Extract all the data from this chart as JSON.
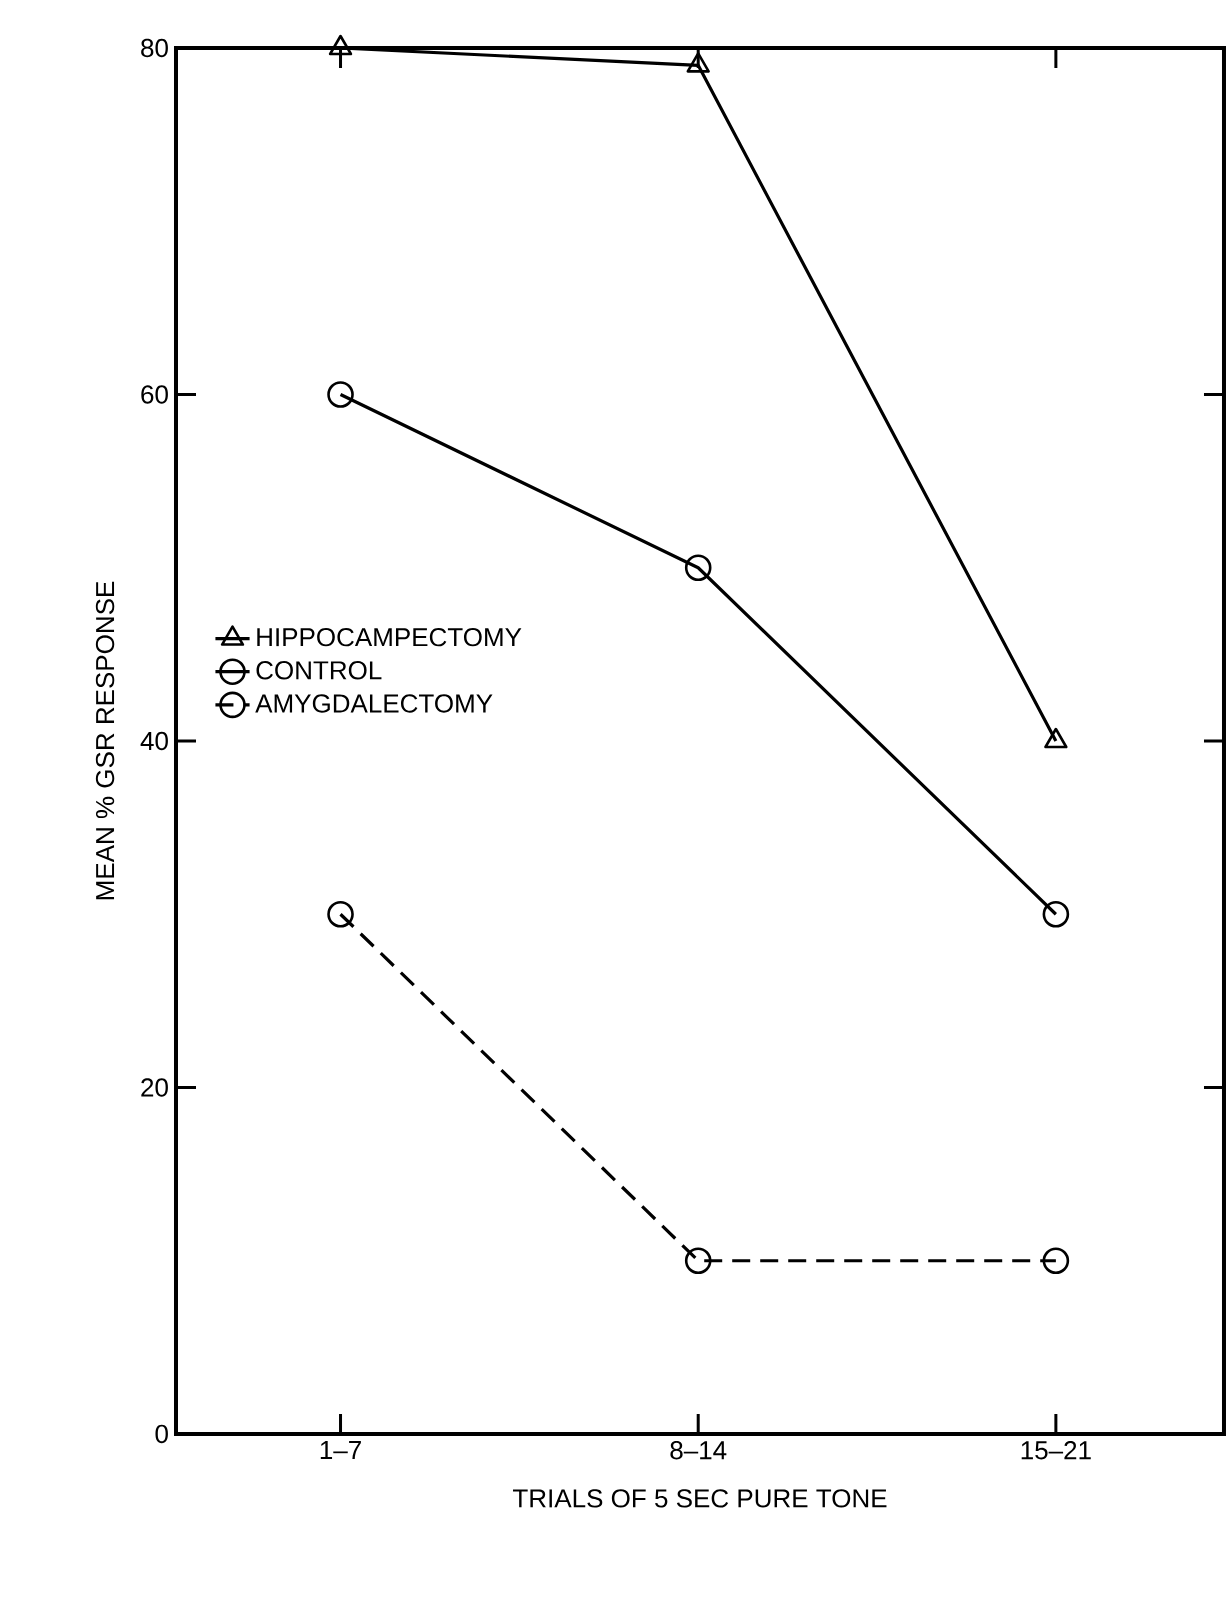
{
  "chart_data": {
    "type": "line",
    "xlabel": "TRIALS OF 5 SEC PURE TONE",
    "ylabel": "MEAN % GSR RESPONSE",
    "categories": [
      "1–7",
      "8–14",
      "15–21"
    ],
    "series": [
      {
        "name": "HIPPOCAMPECTOMY",
        "color": "#000000",
        "marker": "triangle",
        "line_style": "solid",
        "values": [
          80,
          79,
          40
        ]
      },
      {
        "name": "CONTROL",
        "color": "#000000",
        "marker": "circle",
        "line_style": "solid",
        "values": [
          60,
          50,
          30
        ]
      },
      {
        "name": "AMYGDALECTOMY",
        "color": "#000000",
        "marker": "circle",
        "line_style": "dashed",
        "values": [
          30,
          10,
          10
        ]
      }
    ],
    "ylim": [
      0,
      80
    ],
    "yticks": [
      0,
      20,
      40,
      60,
      80
    ],
    "grid": false,
    "legend": "left"
  }
}
